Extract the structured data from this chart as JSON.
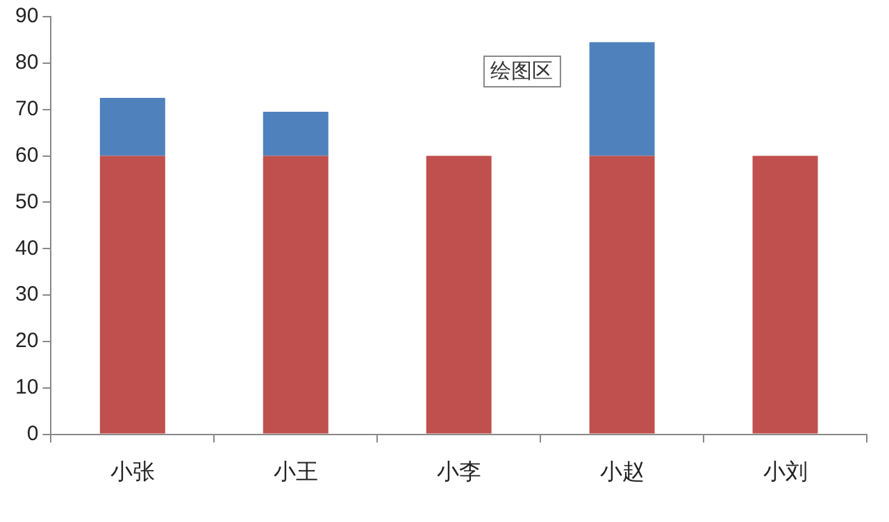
{
  "chart_data": {
    "type": "bar",
    "stacked": true,
    "categories": [
      "小张",
      "小王",
      "小李",
      "小赵",
      "小刘"
    ],
    "series": [
      {
        "color": "#c0504d",
        "values": [
          60,
          60,
          60,
          60,
          60
        ]
      },
      {
        "color": "#4f81bd",
        "values": [
          12.5,
          9.5,
          null,
          24.5,
          null
        ]
      }
    ],
    "ylim": [
      0,
      90
    ],
    "yticks": [
      0,
      10,
      20,
      30,
      40,
      50,
      60,
      70,
      80,
      90
    ],
    "grid": false,
    "legend": false,
    "annotations": [
      "绘图区"
    ]
  }
}
